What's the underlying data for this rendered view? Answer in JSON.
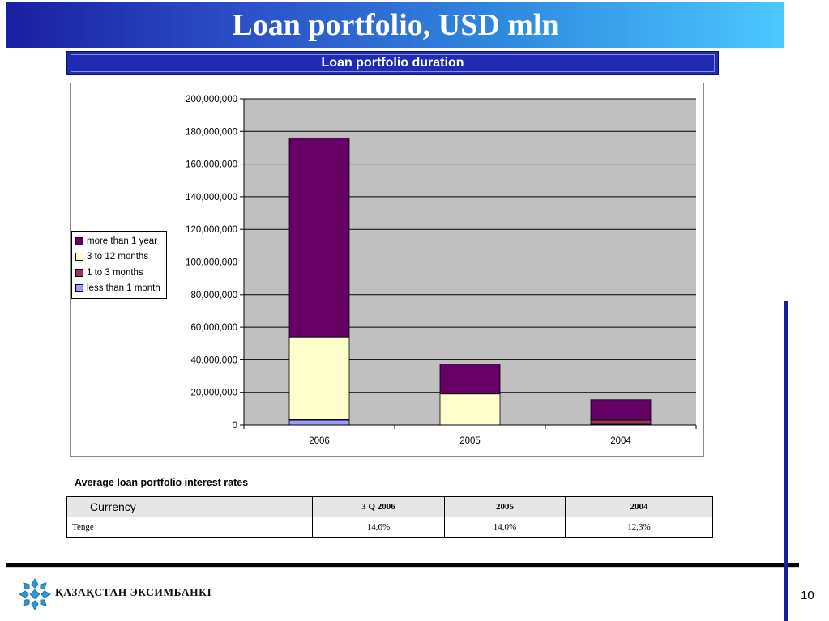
{
  "slide": {
    "title": "Loan portfolio, USD mln",
    "subtitle": "Loan portfolio duration",
    "page_number": "10",
    "bank_name": "ҚАЗАҚСТАН ЭКСИМБАНКІ"
  },
  "chart_data": {
    "type": "bar",
    "stacked": true,
    "categories": [
      "2006",
      "2005",
      "2004"
    ],
    "ylim": [
      0,
      200000000
    ],
    "yticks": [
      "0",
      "20,000,000",
      "40,000,000",
      "60,000,000",
      "80,000,000",
      "100,000,000",
      "120,000,000",
      "140,000,000",
      "160,000,000",
      "180,000,000",
      "200,000,000"
    ],
    "grid": true,
    "legend_position": "left",
    "plot_background": "#c0c0c0",
    "series": [
      {
        "name": "less than 1 month",
        "color": "#9999ff",
        "values": [
          3000000,
          0,
          500000
        ]
      },
      {
        "name": "1 to 3 months",
        "color": "#993366",
        "values": [
          500000,
          0,
          2500000
        ]
      },
      {
        "name": "3 to 12 months",
        "color": "#ffffcc",
        "values": [
          50500000,
          19000000,
          500000
        ]
      },
      {
        "name": "more than 1 year",
        "color": "#660066",
        "values": [
          122000000,
          18500000,
          12000000
        ]
      }
    ]
  },
  "legend": {
    "items": [
      {
        "label": "more than 1 year",
        "color": "#660066"
      },
      {
        "label": "3 to 12 months",
        "color": "#ffffcc"
      },
      {
        "label": "1 to 3 months",
        "color": "#993366"
      },
      {
        "label": "less than 1 month",
        "color": "#9999ff"
      }
    ]
  },
  "rates_table": {
    "heading": "Average loan portfolio  interest rates",
    "header": [
      "Currency",
      "3 Q 2006",
      "2005",
      "2004"
    ],
    "rows": [
      [
        "Tenge",
        "14,6%",
        "14,0%",
        "12,3%"
      ]
    ]
  }
}
